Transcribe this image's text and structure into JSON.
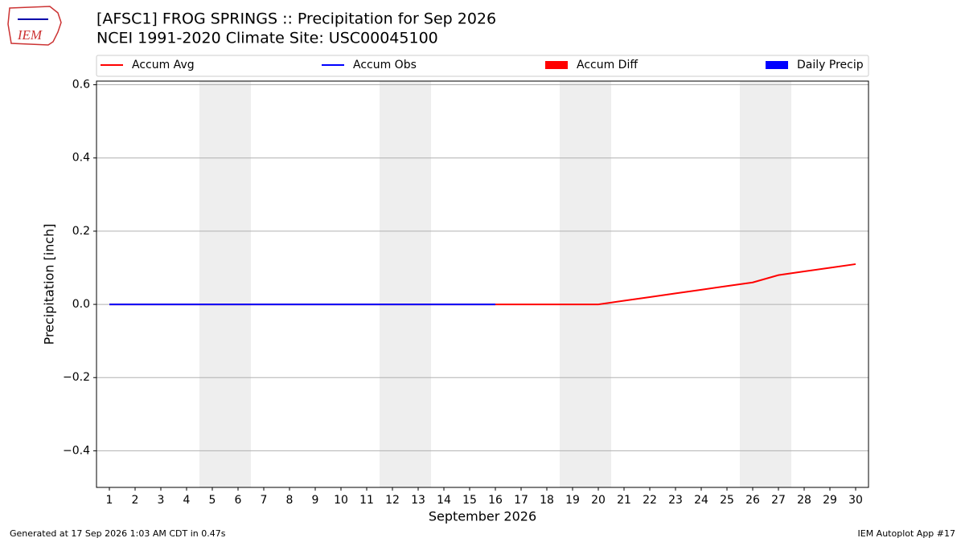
{
  "chart_data": {
    "type": "line",
    "logo_text": "IEM",
    "title": "[AFSC1] FROG SPRINGS :: Precipitation for Sep 2026",
    "subtitle": "NCEI 1991-2020 Climate Site: USC00045100",
    "ylabel": "Precipitation [inch]",
    "xlabel": "September 2026",
    "footer_left": "Generated at 17 Sep 2026 1:03 AM CDT in 0.47s",
    "footer_right": "IEM Autoplot App #17",
    "categories": [
      "1",
      "2",
      "3",
      "4",
      "5",
      "6",
      "7",
      "8",
      "9",
      "10",
      "11",
      "12",
      "13",
      "14",
      "15",
      "16",
      "17",
      "18",
      "19",
      "20",
      "21",
      "22",
      "23",
      "24",
      "25",
      "26",
      "27",
      "28",
      "29",
      "30"
    ],
    "ylim": [
      -0.5,
      0.61
    ],
    "yticks": [
      {
        "value": -0.4,
        "label": "−0.4"
      },
      {
        "value": -0.2,
        "label": "−0.2"
      },
      {
        "value": 0,
        "label": "0.0"
      },
      0.2,
      0.4,
      0.6
    ],
    "grid": true,
    "series": [
      {
        "name": "Accum Avg",
        "kind": "line",
        "color": "#ff0000",
        "values": [
          0,
          0,
          0,
          0,
          0,
          0,
          0,
          0,
          0,
          0,
          0,
          0,
          0,
          0,
          0,
          0,
          0,
          0,
          0,
          0,
          0.01,
          0.02,
          0.03,
          0.04,
          0.05,
          0.06,
          0.08,
          0.09,
          0.1,
          0.11
        ]
      },
      {
        "name": "Accum Obs",
        "kind": "line",
        "color": "#0000ff",
        "values": [
          0,
          0,
          0,
          0,
          0,
          0,
          0,
          0,
          0,
          0,
          0,
          0,
          0,
          0,
          0,
          0,
          null,
          null,
          null,
          null,
          null,
          null,
          null,
          null,
          null,
          null,
          null,
          null,
          null,
          null
        ]
      },
      {
        "name": "Accum Diff",
        "kind": "bar",
        "color": "#ff0000",
        "values": [
          0,
          0,
          0,
          0,
          0,
          0,
          0,
          0,
          0,
          0,
          0,
          0,
          0,
          0,
          0,
          0,
          null,
          null,
          null,
          null,
          null,
          null,
          null,
          null,
          null,
          null,
          null,
          null,
          null,
          null
        ]
      },
      {
        "name": "Daily Precip",
        "kind": "bar",
        "color": "#0000ff",
        "values": [
          0,
          0,
          0,
          0,
          0,
          0,
          0,
          0,
          0,
          0,
          0,
          0,
          0,
          0,
          0,
          0,
          null,
          null,
          null,
          null,
          null,
          null,
          null,
          null,
          null,
          null,
          null,
          null,
          null,
          null
        ]
      }
    ]
  }
}
